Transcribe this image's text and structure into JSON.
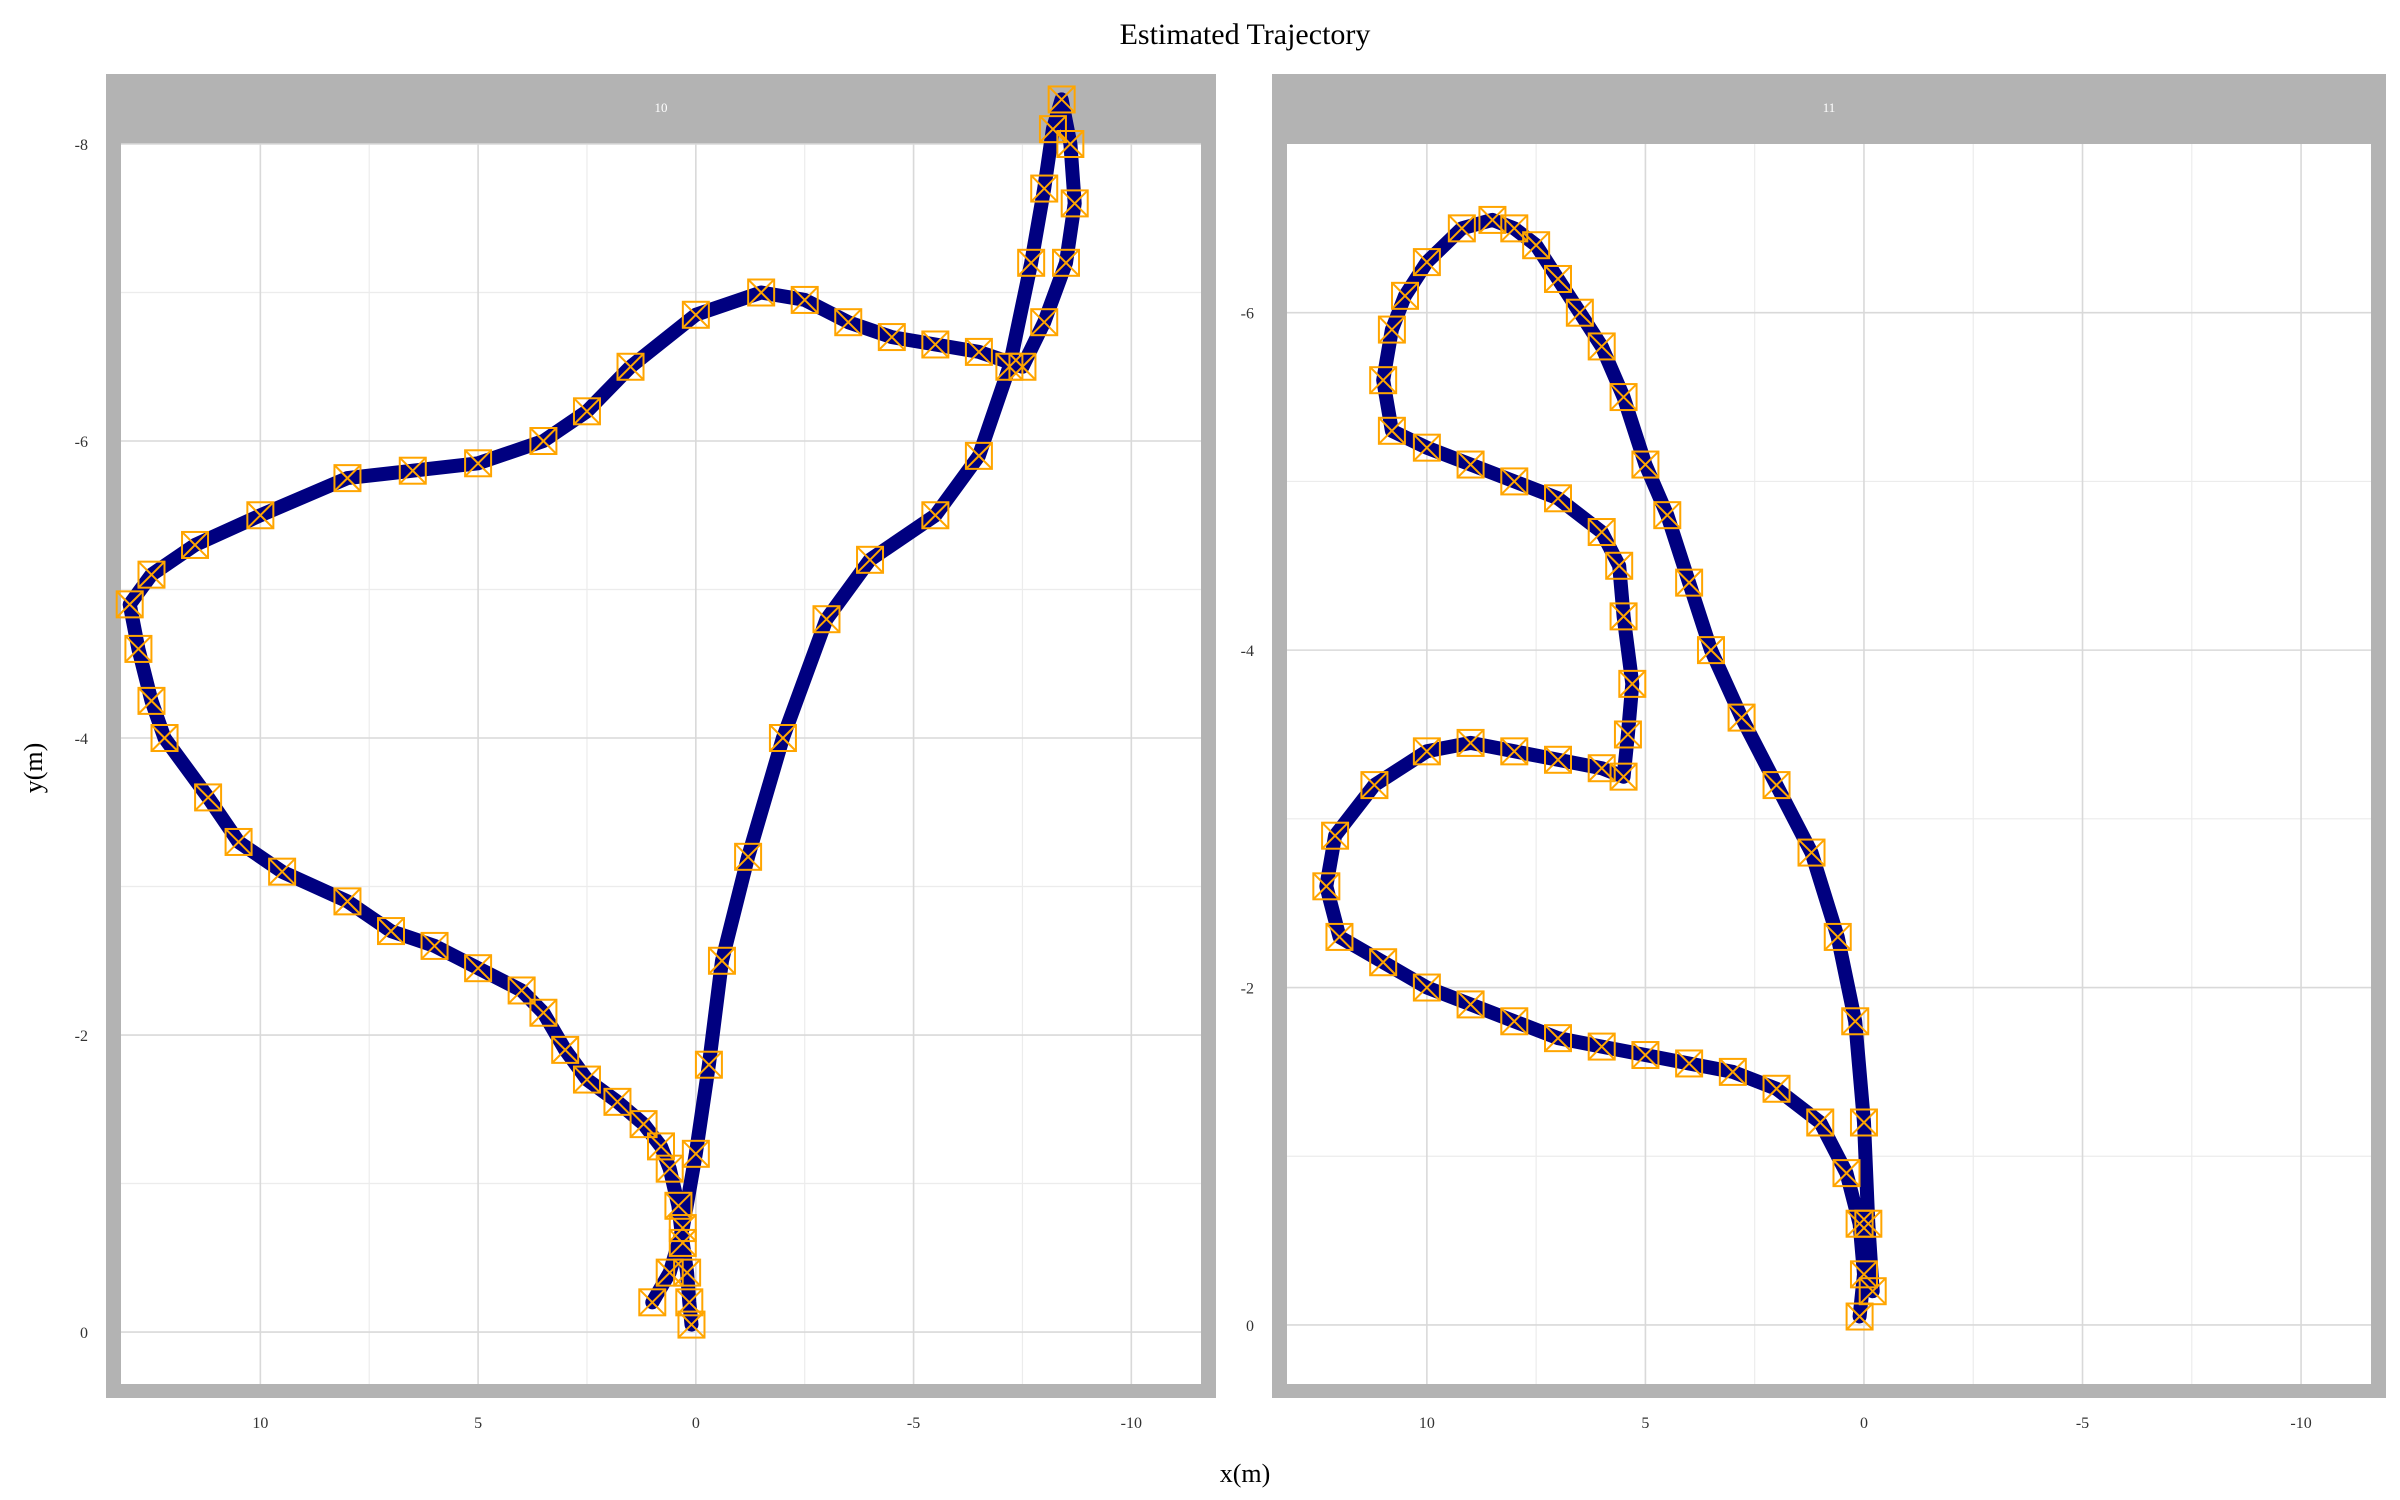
{
  "chart_data": {
    "type": "scatter",
    "title": "Estimated Trajectory",
    "xlabel": "x(m)",
    "ylabel": "y(m)",
    "x_reversed": true,
    "y_reversed": true,
    "grid": true,
    "colors": {
      "path": "#000080",
      "marker": "#ffa500",
      "strip": "#b3b3b3",
      "grid": "#d9d9d9"
    },
    "panels": [
      {
        "strip": "10",
        "xlim": [
          13.2,
          -11.6
        ],
        "ylim": [
          0.35,
          -8.0
        ],
        "x_ticks": [
          10,
          5,
          0,
          -5,
          -10
        ],
        "x_tick_labels": [
          "10",
          "5",
          "0",
          "-5",
          "-10"
        ],
        "y_ticks": [
          -8,
          -6,
          -4,
          -2,
          0
        ],
        "y_tick_labels": [
          "-8",
          "-6",
          "-4",
          "-2",
          "0"
        ],
        "series": [
          {
            "points": [
              [
                0.1,
                -0.05
              ],
              [
                0.15,
                -0.2
              ],
              [
                0.2,
                -0.4
              ],
              [
                0.3,
                -0.6
              ],
              [
                0.4,
                -0.85
              ],
              [
                0.6,
                -1.1
              ],
              [
                0.8,
                -1.25
              ],
              [
                1.2,
                -1.4
              ],
              [
                1.8,
                -1.55
              ],
              [
                2.5,
                -1.7
              ],
              [
                3.0,
                -1.9
              ],
              [
                3.5,
                -2.15
              ],
              [
                4.0,
                -2.3
              ],
              [
                5.0,
                -2.45
              ],
              [
                6.0,
                -2.6
              ],
              [
                7.0,
                -2.7
              ],
              [
                8.0,
                -2.9
              ],
              [
                9.5,
                -3.1
              ],
              [
                10.5,
                -3.3
              ],
              [
                11.2,
                -3.6
              ],
              [
                12.2,
                -4.0
              ],
              [
                12.5,
                -4.25
              ],
              [
                12.8,
                -4.6
              ],
              [
                13.0,
                -4.9
              ],
              [
                12.5,
                -5.1
              ],
              [
                11.5,
                -5.3
              ],
              [
                10.0,
                -5.5
              ],
              [
                8.0,
                -5.75
              ],
              [
                6.5,
                -5.8
              ],
              [
                5.0,
                -5.85
              ],
              [
                3.5,
                -6.0
              ],
              [
                2.5,
                -6.2
              ],
              [
                1.5,
                -6.5
              ],
              [
                0.0,
                -6.85
              ],
              [
                -1.5,
                -7.0
              ],
              [
                -2.5,
                -6.95
              ],
              [
                -3.5,
                -6.8
              ],
              [
                -4.5,
                -6.7
              ],
              [
                -5.5,
                -6.65
              ],
              [
                -6.5,
                -6.6
              ],
              [
                -7.5,
                -6.5
              ],
              [
                -8.0,
                -6.8
              ],
              [
                -8.5,
                -7.2
              ],
              [
                -8.7,
                -7.6
              ],
              [
                -8.6,
                -8.0
              ],
              [
                -8.4,
                -8.3
              ],
              [
                -8.2,
                -8.1
              ],
              [
                -8.0,
                -7.7
              ],
              [
                -7.7,
                -7.2
              ],
              [
                -7.2,
                -6.5
              ],
              [
                -6.5,
                -5.9
              ],
              [
                -5.5,
                -5.5
              ],
              [
                -4.0,
                -5.2
              ],
              [
                -3.0,
                -4.8
              ],
              [
                -2.0,
                -4.0
              ],
              [
                -1.2,
                -3.2
              ],
              [
                -0.6,
                -2.5
              ],
              [
                -0.3,
                -1.8
              ],
              [
                0.0,
                -1.2
              ],
              [
                0.3,
                -0.7
              ],
              [
                0.6,
                -0.4
              ],
              [
                1.0,
                -0.2
              ]
            ]
          }
        ]
      },
      {
        "strip": "11",
        "xlim": [
          13.2,
          -11.6
        ],
        "ylim": [
          0.35,
          -7.0
        ],
        "x_ticks": [
          10,
          5,
          0,
          -5,
          -10
        ],
        "x_tick_labels": [
          "10",
          "5",
          "0",
          "-5",
          "-10"
        ],
        "y_ticks": [
          -6,
          -4,
          -2,
          0
        ],
        "y_tick_labels": [
          "-6",
          "-4",
          "-2",
          "0"
        ],
        "series": [
          {
            "points": [
              [
                0.1,
                -0.05
              ],
              [
                0.0,
                -0.3
              ],
              [
                0.1,
                -0.6
              ],
              [
                0.4,
                -0.9
              ],
              [
                1.0,
                -1.2
              ],
              [
                2.0,
                -1.4
              ],
              [
                3.0,
                -1.5
              ],
              [
                4.0,
                -1.55
              ],
              [
                5.0,
                -1.6
              ],
              [
                6.0,
                -1.65
              ],
              [
                7.0,
                -1.7
              ],
              [
                8.0,
                -1.8
              ],
              [
                9.0,
                -1.9
              ],
              [
                10.0,
                -2.0
              ],
              [
                11.0,
                -2.15
              ],
              [
                12.0,
                -2.3
              ],
              [
                12.3,
                -2.6
              ],
              [
                12.1,
                -2.9
              ],
              [
                11.2,
                -3.2
              ],
              [
                10.0,
                -3.4
              ],
              [
                9.0,
                -3.45
              ],
              [
                8.0,
                -3.4
              ],
              [
                7.0,
                -3.35
              ],
              [
                6.0,
                -3.3
              ],
              [
                5.5,
                -3.25
              ],
              [
                5.4,
                -3.5
              ],
              [
                5.3,
                -3.8
              ],
              [
                5.5,
                -4.2
              ],
              [
                5.6,
                -4.5
              ],
              [
                6.0,
                -4.7
              ],
              [
                7.0,
                -4.9
              ],
              [
                8.0,
                -5.0
              ],
              [
                9.0,
                -5.1
              ],
              [
                10.0,
                -5.2
              ],
              [
                10.8,
                -5.3
              ],
              [
                11.0,
                -5.6
              ],
              [
                10.8,
                -5.9
              ],
              [
                10.5,
                -6.1
              ],
              [
                10.0,
                -6.3
              ],
              [
                9.2,
                -6.5
              ],
              [
                8.5,
                -6.55
              ],
              [
                8.0,
                -6.5
              ],
              [
                7.5,
                -6.4
              ],
              [
                7.0,
                -6.2
              ],
              [
                6.5,
                -6.0
              ],
              [
                6.0,
                -5.8
              ],
              [
                5.5,
                -5.5
              ],
              [
                5.0,
                -5.1
              ],
              [
                4.5,
                -4.8
              ],
              [
                4.0,
                -4.4
              ],
              [
                3.5,
                -4.0
              ],
              [
                2.8,
                -3.6
              ],
              [
                2.0,
                -3.2
              ],
              [
                1.2,
                -2.8
              ],
              [
                0.6,
                -2.3
              ],
              [
                0.2,
                -1.8
              ],
              [
                0.0,
                -1.2
              ],
              [
                -0.1,
                -0.6
              ],
              [
                -0.2,
                -0.2
              ]
            ]
          }
        ]
      }
    ]
  }
}
